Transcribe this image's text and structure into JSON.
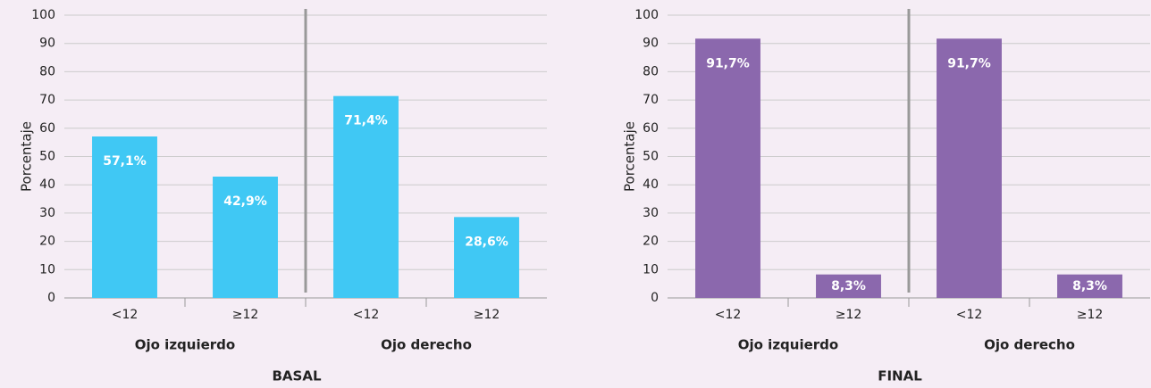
{
  "chart_data": [
    {
      "type": "bar",
      "title": "BASAL",
      "ylabel": "Porcentaje",
      "categories": [
        "<12",
        "≥12",
        "<12",
        "≥12"
      ],
      "groups": [
        "Ojo izquierdo",
        "Ojo derecho"
      ],
      "values": [
        57.1,
        42.9,
        71.4,
        28.6
      ],
      "value_labels": [
        "57,1%",
        "42,9%",
        "71,4%",
        "28,6%"
      ],
      "color": "#40c8f4",
      "ylim": [
        0,
        100
      ],
      "yticks": [
        0,
        10,
        20,
        30,
        40,
        50,
        60,
        70,
        80,
        90,
        100
      ],
      "grid": true
    },
    {
      "type": "bar",
      "title": "FINAL",
      "ylabel": "Porcentaje",
      "categories": [
        "<12",
        "≥12",
        "<12",
        "≥12"
      ],
      "groups": [
        "Ojo izquierdo",
        "Ojo derecho"
      ],
      "values": [
        91.7,
        8.3,
        91.7,
        8.3
      ],
      "value_labels": [
        "91,7%",
        "8,3%",
        "91,7%",
        "8,3%"
      ],
      "color": "#8b68ad",
      "ylim": [
        0,
        100
      ],
      "yticks": [
        0,
        10,
        20,
        30,
        40,
        50,
        60,
        70,
        80,
        90,
        100
      ],
      "grid": true
    }
  ]
}
